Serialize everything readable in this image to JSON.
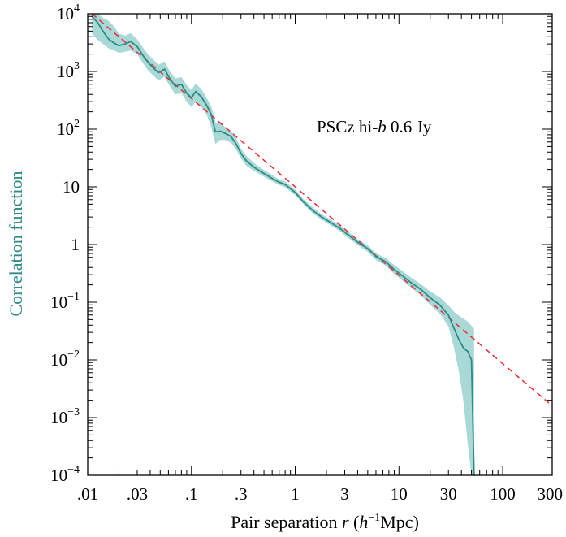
{
  "chart_data": {
    "type": "line",
    "scale": {
      "x": "log",
      "y": "log"
    },
    "xlim": [
      0.01,
      300
    ],
    "ylim": [
      0.0001,
      10000
    ],
    "xticks": [
      {
        "value": 0.01,
        "label": ".01"
      },
      {
        "value": 0.03,
        "label": ".03"
      },
      {
        "value": 0.1,
        "label": ".1"
      },
      {
        "value": 0.3,
        "label": ".3"
      },
      {
        "value": 1,
        "label": "1"
      },
      {
        "value": 3,
        "label": "3"
      },
      {
        "value": 10,
        "label": "10"
      },
      {
        "value": 30,
        "label": "30"
      },
      {
        "value": 100,
        "label": "100"
      },
      {
        "value": 300,
        "label": "300"
      }
    ],
    "yticks": [
      {
        "value": 10000,
        "base": "10",
        "exp": "4"
      },
      {
        "value": 1000,
        "base": "10",
        "exp": "3"
      },
      {
        "value": 100,
        "base": "10",
        "exp": "2"
      },
      {
        "value": 10,
        "base": "10",
        "exp": ""
      },
      {
        "value": 1,
        "base": "1",
        "exp": ""
      },
      {
        "value": 0.1,
        "base": "10",
        "exp": "−1"
      },
      {
        "value": 0.01,
        "base": "10",
        "exp": "−2"
      },
      {
        "value": 0.001,
        "base": "10",
        "exp": "−3"
      },
      {
        "value": 0.0001,
        "base": "10",
        "exp": "−4"
      }
    ],
    "xlabel": {
      "prefix": "Pair separation ",
      "var": "r",
      "unit_open": "  (",
      "unit_var": "h",
      "unit_exp": "−1",
      "unit_close": "Mpc)"
    },
    "ylabel": "Correlation function",
    "annotation": {
      "prefix": "PSCz hi-",
      "var": "b",
      "suffix": " 0.6 Jy"
    },
    "grid": false,
    "colors": {
      "series": "#2e8b86",
      "band": "#a9d9d6",
      "fit": "#e8323c",
      "axis": "#000000"
    },
    "series": [
      {
        "kind": "measurement",
        "x": [
          0.011,
          0.0125,
          0.014,
          0.016,
          0.018,
          0.02,
          0.023,
          0.026,
          0.03,
          0.034,
          0.038,
          0.043,
          0.048,
          0.055,
          0.062,
          0.07,
          0.08,
          0.09,
          0.1,
          0.11,
          0.125,
          0.14,
          0.155,
          0.17,
          0.19,
          0.21,
          0.24,
          0.27,
          0.3,
          0.34,
          0.4,
          0.5,
          0.6,
          0.7,
          0.8,
          1.0,
          1.2,
          1.5,
          1.8,
          2.2,
          2.7,
          3.2,
          4.0,
          5.0,
          6.0,
          7.5,
          9.0,
          11,
          13,
          16,
          20,
          25,
          30,
          34,
          38,
          42,
          46,
          50,
          53
        ],
        "y": [
          9000,
          7000,
          5000,
          3600,
          3100,
          2800,
          3000,
          3300,
          2700,
          1900,
          1450,
          1150,
          950,
          1100,
          750,
          550,
          600,
          420,
          350,
          450,
          360,
          260,
          180,
          90,
          92,
          85,
          75,
          55,
          38,
          28,
          22,
          17,
          14,
          12,
          11,
          8,
          5.5,
          3.8,
          3.0,
          2.4,
          1.9,
          1.5,
          1.1,
          0.85,
          0.62,
          0.5,
          0.37,
          0.28,
          0.22,
          0.17,
          0.12,
          0.088,
          0.06,
          0.035,
          0.022,
          0.016,
          0.014,
          0.01,
          0.0001
        ],
        "band_lo": [
          4500,
          3500,
          3000,
          2500,
          2300,
          2100,
          2200,
          2300,
          2000,
          1400,
          1050,
          850,
          700,
          800,
          550,
          400,
          420,
          300,
          240,
          300,
          240,
          180,
          110,
          55,
          65,
          65,
          58,
          44,
          31,
          23,
          19,
          15,
          12.5,
          10.8,
          9.8,
          7.2,
          5.0,
          3.4,
          2.7,
          2.15,
          1.7,
          1.33,
          0.98,
          0.75,
          0.54,
          0.43,
          0.31,
          0.23,
          0.18,
          0.135,
          0.09,
          0.062,
          0.038,
          0.016,
          0.006,
          0.0018,
          0.00035,
          0.0001,
          0.0001
        ],
        "band_hi": [
          11000,
          10000,
          8500,
          7500,
          6000,
          4500,
          4200,
          4600,
          3600,
          2600,
          2000,
          1600,
          1300,
          1500,
          1000,
          760,
          800,
          580,
          480,
          620,
          490,
          350,
          250,
          130,
          125,
          110,
          95,
          70,
          46,
          34,
          26,
          19.5,
          16,
          13.5,
          12.3,
          9,
          6.1,
          4.3,
          3.35,
          2.7,
          2.15,
          1.7,
          1.24,
          0.97,
          0.71,
          0.58,
          0.44,
          0.34,
          0.27,
          0.21,
          0.155,
          0.12,
          0.088,
          0.068,
          0.058,
          0.052,
          0.046,
          0.039,
          0.034
        ]
      },
      {
        "kind": "fit",
        "x": [
          0.011,
          300
        ],
        "y": [
          10000,
          0.0016
        ]
      }
    ]
  }
}
